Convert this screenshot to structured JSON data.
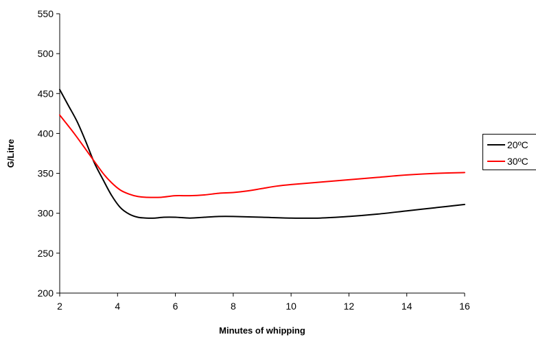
{
  "chart_data": {
    "type": "line",
    "title": "",
    "xlabel": "Minutes of whipping",
    "ylabel": "G/Litre",
    "xlim": [
      2,
      16
    ],
    "ylim": [
      200,
      550
    ],
    "x_ticks": [
      2,
      4,
      6,
      8,
      10,
      12,
      14,
      16
    ],
    "y_ticks": [
      200,
      250,
      300,
      350,
      400,
      450,
      500,
      550
    ],
    "grid": false,
    "legend_position": "right",
    "series": [
      {
        "name": "20ºC",
        "color": "#000000",
        "points": [
          [
            2,
            455
          ],
          [
            2.3,
            435
          ],
          [
            2.6,
            415
          ],
          [
            2.9,
            390
          ],
          [
            3.2,
            363
          ],
          [
            3.5,
            342
          ],
          [
            3.8,
            322
          ],
          [
            4.1,
            307
          ],
          [
            4.4,
            299
          ],
          [
            4.7,
            295
          ],
          [
            5.0,
            294
          ],
          [
            5.3,
            294
          ],
          [
            5.6,
            295
          ],
          [
            6.0,
            295
          ],
          [
            6.5,
            294
          ],
          [
            7.0,
            295
          ],
          [
            7.5,
            296
          ],
          [
            8.0,
            296
          ],
          [
            9.0,
            295
          ],
          [
            10.0,
            294
          ],
          [
            11.0,
            294
          ],
          [
            12.0,
            296
          ],
          [
            13.0,
            299
          ],
          [
            14.0,
            303
          ],
          [
            15.0,
            307
          ],
          [
            16.0,
            311
          ]
        ]
      },
      {
        "name": "30ºC",
        "color": "#ff0000",
        "points": [
          [
            2,
            423
          ],
          [
            2.5,
            400
          ],
          [
            3.0,
            375
          ],
          [
            3.5,
            350
          ],
          [
            3.8,
            338
          ],
          [
            4.1,
            329
          ],
          [
            4.4,
            324
          ],
          [
            4.7,
            321
          ],
          [
            5.0,
            320
          ],
          [
            5.5,
            320
          ],
          [
            6.0,
            322
          ],
          [
            6.5,
            322
          ],
          [
            7.0,
            323
          ],
          [
            7.5,
            325
          ],
          [
            8.0,
            326
          ],
          [
            8.5,
            328
          ],
          [
            9.0,
            331
          ],
          [
            9.5,
            334
          ],
          [
            10.0,
            336
          ],
          [
            11.0,
            339
          ],
          [
            12.0,
            342
          ],
          [
            13.0,
            345
          ],
          [
            14.0,
            348
          ],
          [
            15.0,
            350
          ],
          [
            16.0,
            351
          ]
        ]
      }
    ]
  }
}
